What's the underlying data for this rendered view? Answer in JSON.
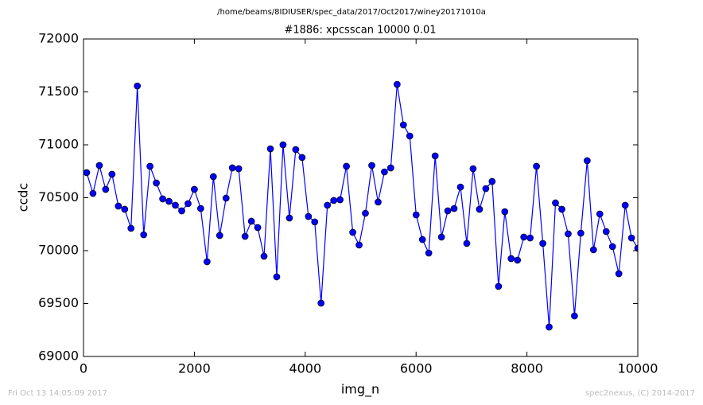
{
  "chart_data": {
    "type": "line",
    "suptitle": "/home/beams/8IDIUSER/spec_data/2017/Oct2017/winey20171010a",
    "title": "#1886: xpcsscan 10000 0.01",
    "xlabel": "img_n",
    "ylabel": "ccdc",
    "footer_left": "Fri Oct 13 14:05:09 2017",
    "footer_right": "spec2nexus, (C) 2014-2017",
    "xlim": [
      0,
      10000
    ],
    "xticks": [
      0,
      2000,
      4000,
      6000,
      8000,
      10000
    ],
    "ylim": [
      69000,
      72000
    ],
    "yticks": [
      69000,
      69500,
      70000,
      70500,
      71000,
      71500,
      72000
    ],
    "grid": false,
    "series": [
      {
        "name": "ccdc",
        "color": "#0000ff",
        "x": [
          57,
          171,
          286,
          400,
          514,
          629,
          743,
          857,
          971,
          1086,
          1200,
          1314,
          1429,
          1543,
          1657,
          1772,
          1886,
          2000,
          2114,
          2229,
          2343,
          2457,
          2572,
          2686,
          2800,
          2915,
          3029,
          3143,
          3257,
          3372,
          3486,
          3600,
          3715,
          3829,
          3943,
          4058,
          4172,
          4286,
          4400,
          4515,
          4629,
          4743,
          4858,
          4972,
          5086,
          5201,
          5315,
          5429,
          5543,
          5658,
          5772,
          5886,
          6001,
          6115,
          6229,
          6344,
          6458,
          6572,
          6686,
          6801,
          6915,
          7029,
          7144,
          7258,
          7372,
          7487,
          7601,
          7715,
          7829,
          7944,
          8058,
          8172,
          8287,
          8401,
          8515,
          8630,
          8744,
          8858,
          8972,
          9087,
          9201,
          9315,
          9430,
          9544,
          9658,
          9773,
          9887,
          10000
        ],
        "values": [
          70737,
          70541,
          70805,
          70579,
          70722,
          70421,
          70391,
          70211,
          71556,
          70150,
          70797,
          70639,
          70489,
          70466,
          70429,
          70376,
          70444,
          70579,
          70398,
          69895,
          70699,
          70143,
          70496,
          70782,
          70774,
          70135,
          70278,
          70218,
          69947,
          70962,
          69752,
          71000,
          70308,
          70955,
          70880,
          70323,
          70271,
          69504,
          70429,
          70474,
          70481,
          70797,
          70173,
          70053,
          70353,
          70805,
          70459,
          70744,
          70782,
          71571,
          71188,
          71083,
          70338,
          70105,
          69977,
          70895,
          70128,
          70376,
          70398,
          70601,
          70068,
          70774,
          70391,
          70586,
          70654,
          69662,
          70368,
          69925,
          69910,
          70128,
          70120,
          70797,
          70068,
          69278,
          70451,
          70391,
          70158,
          69383,
          70165,
          70850,
          70008,
          70346,
          70180,
          70038,
          69782,
          70429,
          70120,
          70023
        ]
      }
    ]
  }
}
